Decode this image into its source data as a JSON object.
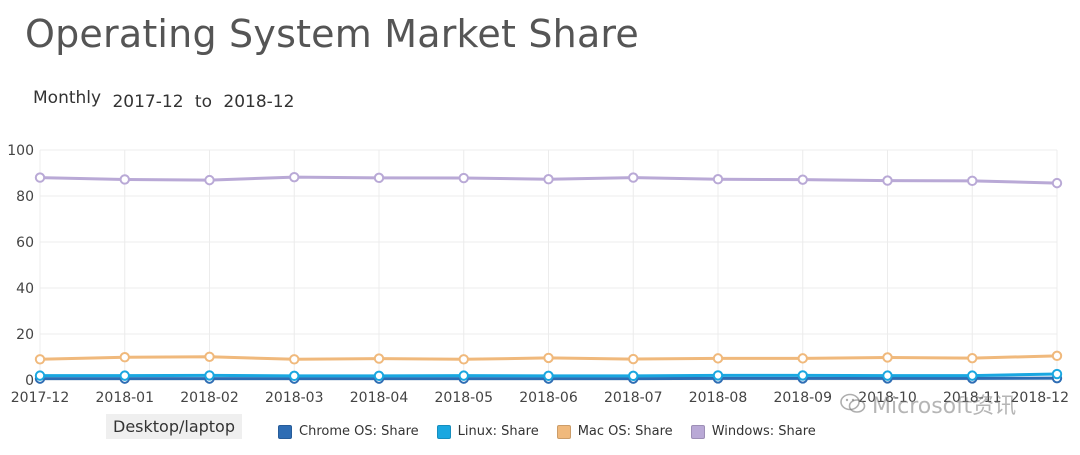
{
  "header": {
    "title": "Operating System Market Share",
    "period_label": "Monthly",
    "range_from": "2017-12",
    "range_to_word": "to",
    "range_to": "2018-12"
  },
  "legend": {
    "group_label": "Desktop/laptop"
  },
  "watermark": {
    "text": "Microsoft资讯",
    "icon": "wechat-icon"
  },
  "chart_data": {
    "type": "line",
    "x": [
      "2017-12",
      "2018-01",
      "2018-02",
      "2018-03",
      "2018-04",
      "2018-05",
      "2018-06",
      "2018-07",
      "2018-08",
      "2018-09",
      "2018-10",
      "2018-11",
      "2018-12"
    ],
    "x_tick_labels": [
      "2017-12",
      "2018-01",
      "2018-02",
      "2018-03",
      "2018-04",
      "2018-05",
      "2018-06",
      "2018-07",
      "2018-08",
      "2018-09",
      "2018-10",
      "2018-11",
      "2018-12"
    ],
    "ylim": [
      0,
      100
    ],
    "yticks": [
      0,
      20,
      40,
      60,
      80,
      100
    ],
    "grid": true,
    "legend_position": "bottom",
    "series": [
      {
        "name": "Chrome OS: Share",
        "color": "#2e6db4",
        "values": [
          0.6,
          0.6,
          0.6,
          0.6,
          0.6,
          0.6,
          0.6,
          0.6,
          0.7,
          0.7,
          0.7,
          0.7,
          0.8
        ]
      },
      {
        "name": "Linux: Share",
        "color": "#1aa7e0",
        "values": [
          1.9,
          1.9,
          2.0,
          1.8,
          1.8,
          1.9,
          1.8,
          1.8,
          2.0,
          2.0,
          1.9,
          1.9,
          2.6
        ]
      },
      {
        "name": "Mac OS: Share",
        "color": "#f0b97c",
        "values": [
          9.0,
          9.9,
          10.1,
          9.0,
          9.3,
          9.0,
          9.6,
          9.1,
          9.4,
          9.4,
          9.8,
          9.5,
          10.5
        ]
      },
      {
        "name": "Windows: Share",
        "color": "#b9a9d6",
        "values": [
          88.0,
          87.2,
          86.9,
          88.2,
          87.9,
          87.8,
          87.3,
          88.0,
          87.3,
          87.1,
          86.7,
          86.6,
          85.6
        ]
      }
    ]
  }
}
